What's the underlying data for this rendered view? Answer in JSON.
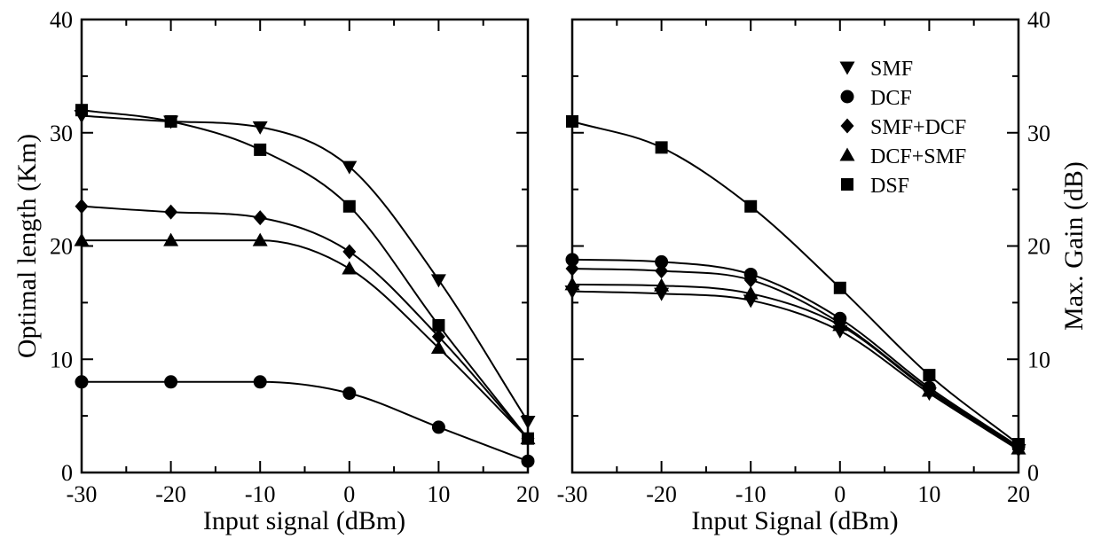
{
  "chart_data": [
    {
      "type": "line",
      "title": "",
      "xlabel": "Input signal (dBm)",
      "ylabel": "Optimal length (Km)",
      "xlim": [
        -30,
        20
      ],
      "ylim": [
        0,
        40
      ],
      "xticks": [
        -30,
        -20,
        -10,
        0,
        10,
        20
      ],
      "yticks": [
        0,
        10,
        20,
        30,
        40
      ],
      "grid": false,
      "x": [
        -30,
        -20,
        -10,
        0,
        10,
        20
      ],
      "series": [
        {
          "name": "SMF",
          "marker": "triangle-down",
          "values": [
            31.5,
            31.0,
            30.5,
            27.0,
            17.0,
            4.5
          ]
        },
        {
          "name": "DCF",
          "marker": "circle",
          "values": [
            8.0,
            8.0,
            8.0,
            7.0,
            4.0,
            1.0
          ]
        },
        {
          "name": "SMF+DCF",
          "marker": "diamond",
          "values": [
            23.5,
            23.0,
            22.5,
            19.5,
            12.0,
            3.0
          ]
        },
        {
          "name": "DCF+SMF",
          "marker": "triangle-up",
          "values": [
            20.5,
            20.5,
            20.5,
            18.0,
            11.0,
            3.0
          ]
        },
        {
          "name": "DSF",
          "marker": "square",
          "values": [
            32.0,
            31.0,
            28.5,
            23.5,
            13.0,
            3.0
          ]
        }
      ]
    },
    {
      "type": "line",
      "title": "",
      "xlabel": "Input Signal (dBm)",
      "ylabel": "Max. Gain (dB)",
      "xlim": [
        -30,
        20
      ],
      "ylim": [
        0,
        40
      ],
      "xticks": [
        -30,
        -20,
        -10,
        0,
        10,
        20
      ],
      "yticks": [
        0,
        10,
        20,
        30,
        40
      ],
      "grid": false,
      "legend": "top-right",
      "x": [
        -30,
        -20,
        -10,
        0,
        10,
        20
      ],
      "series": [
        {
          "name": "SMF",
          "marker": "triangle-down",
          "values": [
            16.0,
            15.8,
            15.2,
            12.5,
            7.0,
            2.0
          ]
        },
        {
          "name": "DCF",
          "marker": "circle",
          "values": [
            18.8,
            18.6,
            17.5,
            13.6,
            7.5,
            2.3
          ]
        },
        {
          "name": "SMF+DCF",
          "marker": "diamond",
          "values": [
            18.0,
            17.8,
            17.0,
            13.2,
            7.3,
            2.2
          ]
        },
        {
          "name": "DCF+SMF",
          "marker": "triangle-up",
          "values": [
            16.6,
            16.5,
            15.8,
            13.0,
            7.2,
            2.1
          ]
        },
        {
          "name": "DSF",
          "marker": "square",
          "values": [
            31.0,
            28.7,
            23.5,
            16.3,
            8.6,
            2.5
          ]
        }
      ]
    }
  ]
}
